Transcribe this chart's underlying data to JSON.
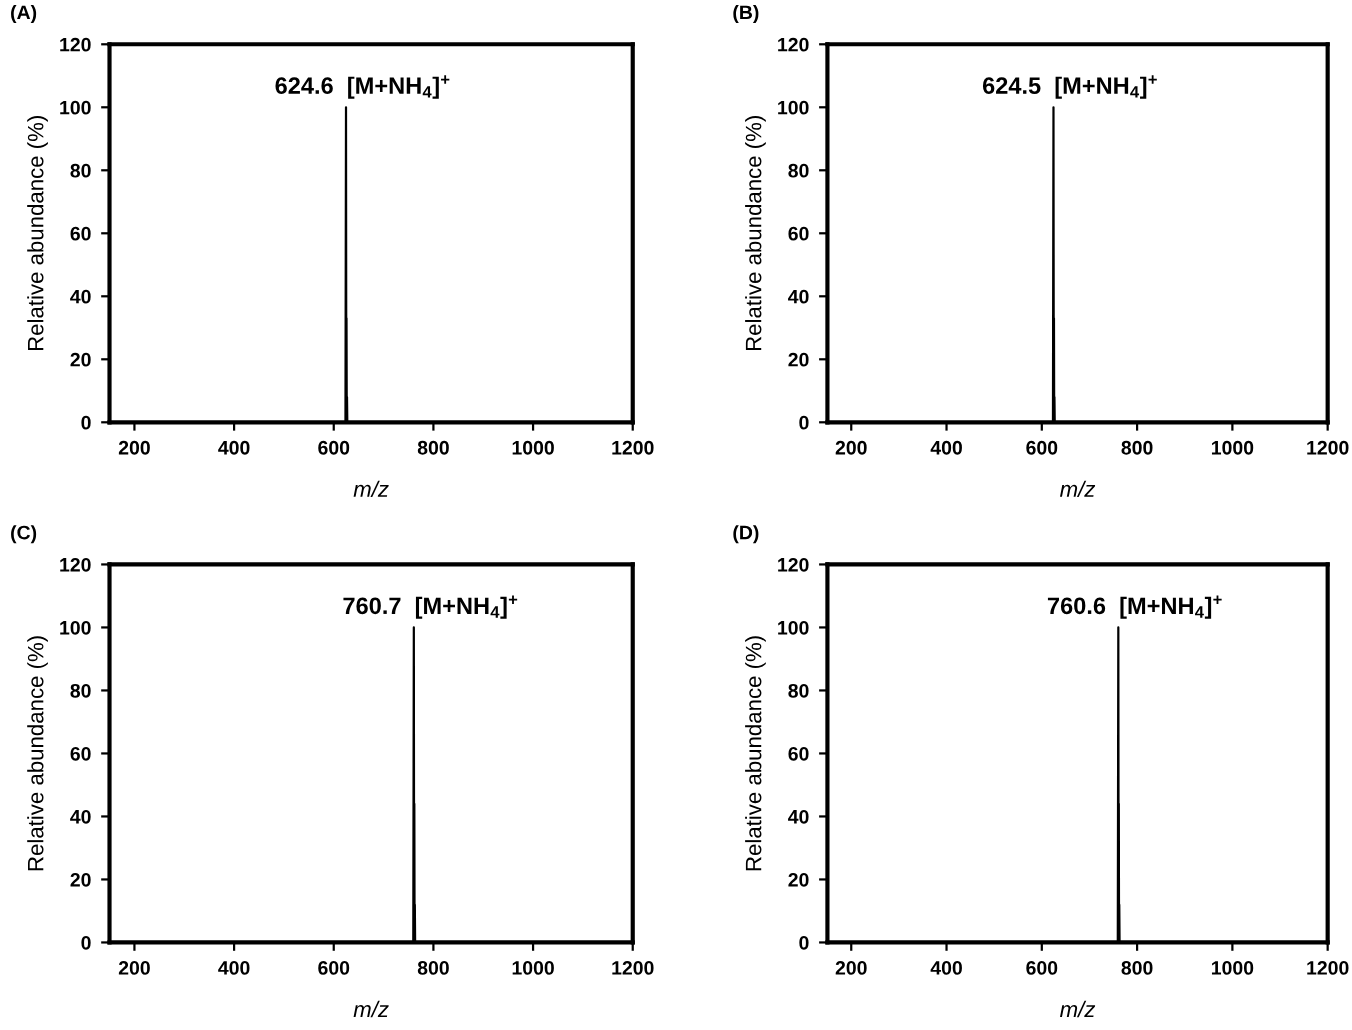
{
  "chart_data": [
    {
      "type": "line",
      "title": "(A)",
      "xlabel": "m/z",
      "ylabel": "Relative abundance (%)",
      "xlim": [
        150,
        1200
      ],
      "ylim": [
        0,
        120
      ],
      "xticks": [
        200,
        400,
        600,
        800,
        1000,
        1200
      ],
      "yticks": [
        0,
        20,
        40,
        60,
        80,
        100,
        120
      ],
      "grid": false,
      "legend": false,
      "marker": "none",
      "line_style": "solid",
      "series": [
        {
          "color": "#000000",
          "x": [
            150,
            623.5,
            624.6,
            625.2,
            625.6,
            626.1,
            626.6,
            627.2,
            1200
          ],
          "values": [
            0,
            0,
            100,
            0,
            33,
            0,
            8,
            0,
            0
          ]
        }
      ],
      "annotations": [
        {
          "text": "624.6  [M+NH$_{4}$]$^{+}$",
          "x": 624.6,
          "y": 100
        }
      ]
    },
    {
      "type": "line",
      "title": "(B)",
      "xlabel": "m/z",
      "ylabel": "Relative abundance (%)",
      "xlim": [
        150,
        1200
      ],
      "ylim": [
        0,
        120
      ],
      "xticks": [
        200,
        400,
        600,
        800,
        1000,
        1200
      ],
      "yticks": [
        0,
        20,
        40,
        60,
        80,
        100,
        120
      ],
      "grid": false,
      "legend": false,
      "marker": "none",
      "line_style": "solid",
      "series": [
        {
          "color": "#000000",
          "x": [
            150,
            623.4,
            624.5,
            625.1,
            625.5,
            626.0,
            626.5,
            627.1,
            1200
          ],
          "values": [
            0,
            0,
            100,
            0,
            33,
            0,
            8,
            0,
            0
          ]
        }
      ],
      "annotations": [
        {
          "text": "624.5  [M+NH$_{4}$]$^{+}$",
          "x": 624.5,
          "y": 100
        }
      ]
    },
    {
      "type": "line",
      "title": "(C)",
      "xlabel": "m/z",
      "ylabel": "Relative abundance (%)",
      "xlim": [
        150,
        1200
      ],
      "ylim": [
        0,
        120
      ],
      "xticks": [
        200,
        400,
        600,
        800,
        1000,
        1200
      ],
      "yticks": [
        0,
        20,
        40,
        60,
        80,
        100,
        120
      ],
      "grid": false,
      "legend": false,
      "marker": "none",
      "line_style": "solid",
      "series": [
        {
          "color": "#000000",
          "x": [
            150,
            759.6,
            760.7,
            761.3,
            761.7,
            762.2,
            762.7,
            763.3,
            1200
          ],
          "values": [
            0,
            0,
            100,
            0,
            44,
            0,
            12,
            0,
            0
          ]
        }
      ],
      "annotations": [
        {
          "text": "760.7  [M+NH$_{4}$]$^{+}$",
          "x": 760.7,
          "y": 100
        }
      ]
    },
    {
      "type": "line",
      "title": "(D)",
      "xlabel": "m/z",
      "ylabel": "Relative abundance (%)",
      "xlim": [
        150,
        1200
      ],
      "ylim": [
        0,
        120
      ],
      "xticks": [
        200,
        400,
        600,
        800,
        1000,
        1200
      ],
      "yticks": [
        0,
        20,
        40,
        60,
        80,
        100,
        120
      ],
      "grid": false,
      "legend": false,
      "marker": "none",
      "line_style": "solid",
      "series": [
        {
          "color": "#000000",
          "x": [
            150,
            759.5,
            760.6,
            761.2,
            761.6,
            762.1,
            762.6,
            763.2,
            1200
          ],
          "values": [
            0,
            0,
            100,
            0,
            44,
            0,
            12,
            0,
            0
          ]
        }
      ],
      "annotations": [
        {
          "text": "760.6  [M+NH$_{4}$]$^{+}$",
          "x": 760.6,
          "y": 100
        }
      ]
    }
  ]
}
